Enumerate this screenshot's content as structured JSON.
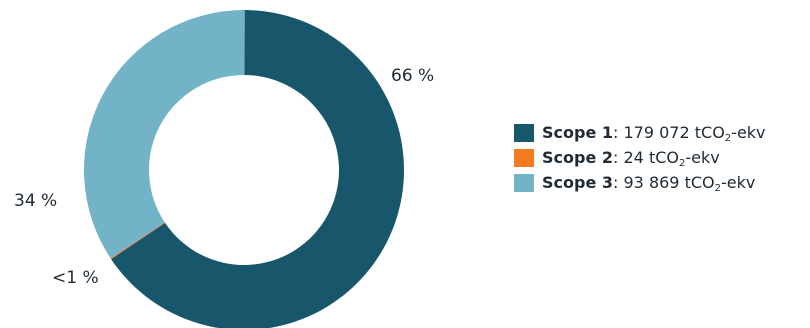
{
  "chart_data": {
    "type": "pie",
    "variant": "donut",
    "unit": "tCO2-ekv",
    "categories": [
      "Scope 1",
      "Scope 2",
      "Scope 3"
    ],
    "values": [
      179072,
      24,
      93869
    ],
    "percent_labels": [
      "66 %",
      "<1 %",
      "34 %"
    ],
    "colors": [
      "#17566b",
      "#f47b20",
      "#73b3c8"
    ],
    "title": "",
    "legend_position": "right",
    "legend": [
      {
        "name": "Scope 1",
        "value_text": "179 072 tCO",
        "unit_sub": "2",
        "unit_suffix": "-ekv",
        "color": "#17566b"
      },
      {
        "name": "Scope 2",
        "value_text": "24 tCO",
        "unit_sub": "2",
        "unit_suffix": "-ekv",
        "color": "#f47b20"
      },
      {
        "name": "Scope 3",
        "value_text": "93 869 tCO",
        "unit_sub": "2",
        "unit_suffix": "-ekv",
        "color": "#73b3c8"
      }
    ]
  }
}
